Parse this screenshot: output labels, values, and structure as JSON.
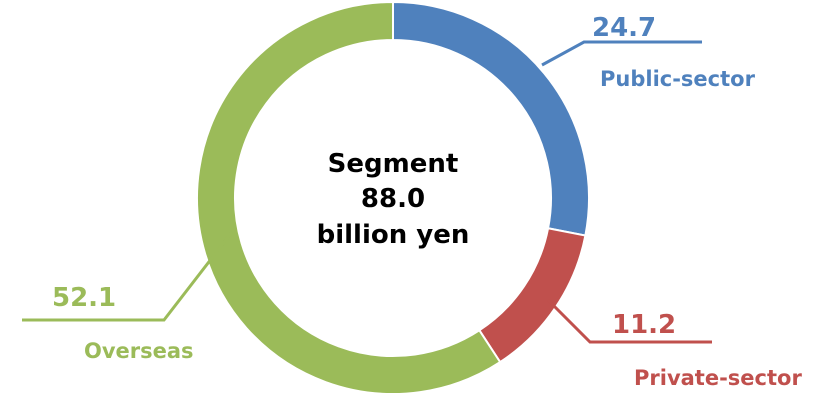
{
  "chart_data": {
    "type": "pie",
    "title": "",
    "center_text": [
      "Segment",
      "88.0",
      "billion yen"
    ],
    "series": [
      {
        "name": "Public-sector",
        "value": 24.7,
        "label": "24.7",
        "color": "#4f81bd"
      },
      {
        "name": "Private-sector",
        "value": 11.2,
        "label": "11.2",
        "color": "#c0504d"
      },
      {
        "name": "Overseas",
        "value": 52.1,
        "label": "52.1",
        "color": "#9bbb59"
      }
    ],
    "donut": true,
    "legend": "none"
  }
}
